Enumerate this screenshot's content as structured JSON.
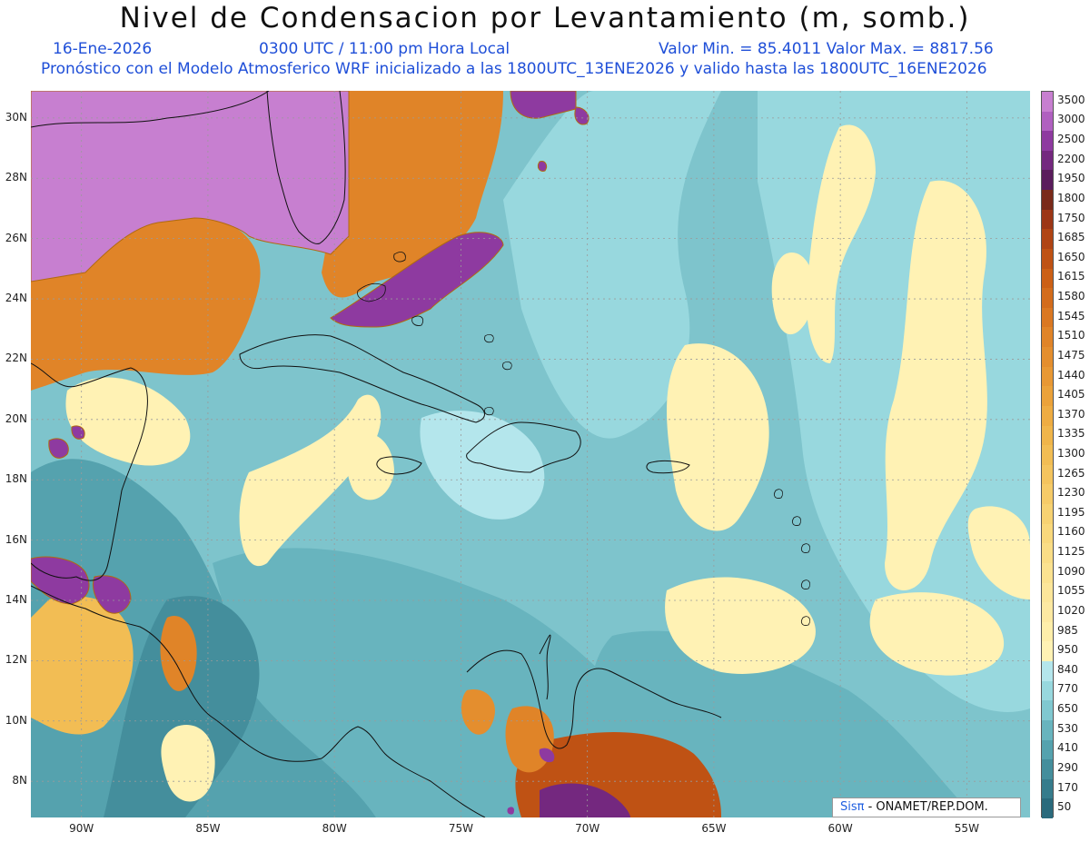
{
  "header": {
    "title": "Nivel de Condensacion por Levantamiento (m, somb.)",
    "date": "16-Ene-2026",
    "time": "0300 UTC / 11:00 pm Hora Local",
    "minmax": "Valor Min. = 85.4011   Valor Max. = 8817.56",
    "model": "Pronóstico con el Modelo Atmosferico WRF inicializado a las 1800UTC_13ENE2026 y valido hasta las  1800UTC_16ENE2026"
  },
  "map": {
    "lat_labels": [
      "30N",
      "28N",
      "26N",
      "24N",
      "22N",
      "20N",
      "18N",
      "16N",
      "14N",
      "12N",
      "10N",
      "8N"
    ],
    "lon_labels": [
      "90W",
      "85W",
      "80W",
      "75W",
      "70W",
      "65W",
      "60W",
      "55W"
    ],
    "lat_range": [
      6.8,
      30.9
    ],
    "lon_range": [
      -92,
      -52.5
    ]
  },
  "colorbar": {
    "labels": [
      "3500",
      "3000",
      "2500",
      "2200",
      "1950",
      "1800",
      "1750",
      "1685",
      "1650",
      "1615",
      "1580",
      "1545",
      "1510",
      "1475",
      "1440",
      "1405",
      "1370",
      "1335",
      "1300",
      "1265",
      "1230",
      "1195",
      "1160",
      "1125",
      "1090",
      "1055",
      "1020",
      "985",
      "950",
      "840",
      "770",
      "650",
      "530",
      "410",
      "290",
      "170",
      "50"
    ],
    "colors": [
      "#c77fd0",
      "#b060c0",
      "#8e3aa0",
      "#74287f",
      "#5a1c5c",
      "#7a2a1a",
      "#9c3616",
      "#b04414",
      "#bf5214",
      "#cc6016",
      "#d36c1c",
      "#da7822",
      "#e08428",
      "#e48e2e",
      "#e89834",
      "#eba23a",
      "#eeac42",
      "#f0b54a",
      "#f2bd54",
      "#f4c45e",
      "#f6cb68",
      "#f7d272",
      "#f9d87c",
      "#fadd86",
      "#fbe290",
      "#fce69a",
      "#fde9a2",
      "#feeeaa",
      "#fff2b4",
      "#b4e6ec",
      "#98d8de",
      "#80c8d0",
      "#68b4be",
      "#55a2ae",
      "#448e9c",
      "#367c8c",
      "#2a6a7c"
    ]
  },
  "credit": {
    "sis": "Sisπ",
    "rest": " - ONAMET/REP.DOM."
  }
}
